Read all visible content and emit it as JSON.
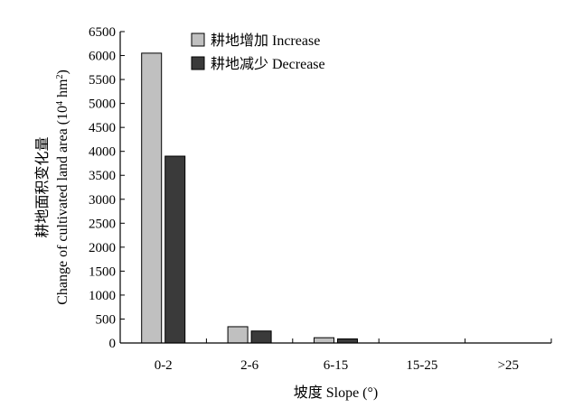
{
  "chart_data": {
    "type": "bar",
    "categories": [
      "0-2",
      "2-6",
      "6-15",
      "15-25",
      ">25"
    ],
    "series": [
      {
        "name": "耕地增加 Increase",
        "values": [
          6050,
          340,
          110,
          0,
          0
        ],
        "color": "#c0c0c0"
      },
      {
        "name": "耕地减少 Decrease",
        "values": [
          3900,
          250,
          85,
          0,
          0
        ],
        "color": "#3a3a3a"
      }
    ],
    "xlabel": "坡度 Slope (°)",
    "ylabel_line1": "耕地面积变化量",
    "ylabel_line2_prefix": "Change of cultivated land area (10",
    "ylabel_line2_exp1": "4",
    "ylabel_line2_mid": " hm",
    "ylabel_line2_exp2": "2",
    "ylabel_line2_suffix": ")",
    "ylim": [
      0,
      6500
    ],
    "yticks": [
      0,
      500,
      1000,
      1500,
      2000,
      2500,
      3000,
      3500,
      4000,
      4500,
      5000,
      5500,
      6000,
      6500
    ],
    "grid": false,
    "legend_position": "top-left"
  }
}
